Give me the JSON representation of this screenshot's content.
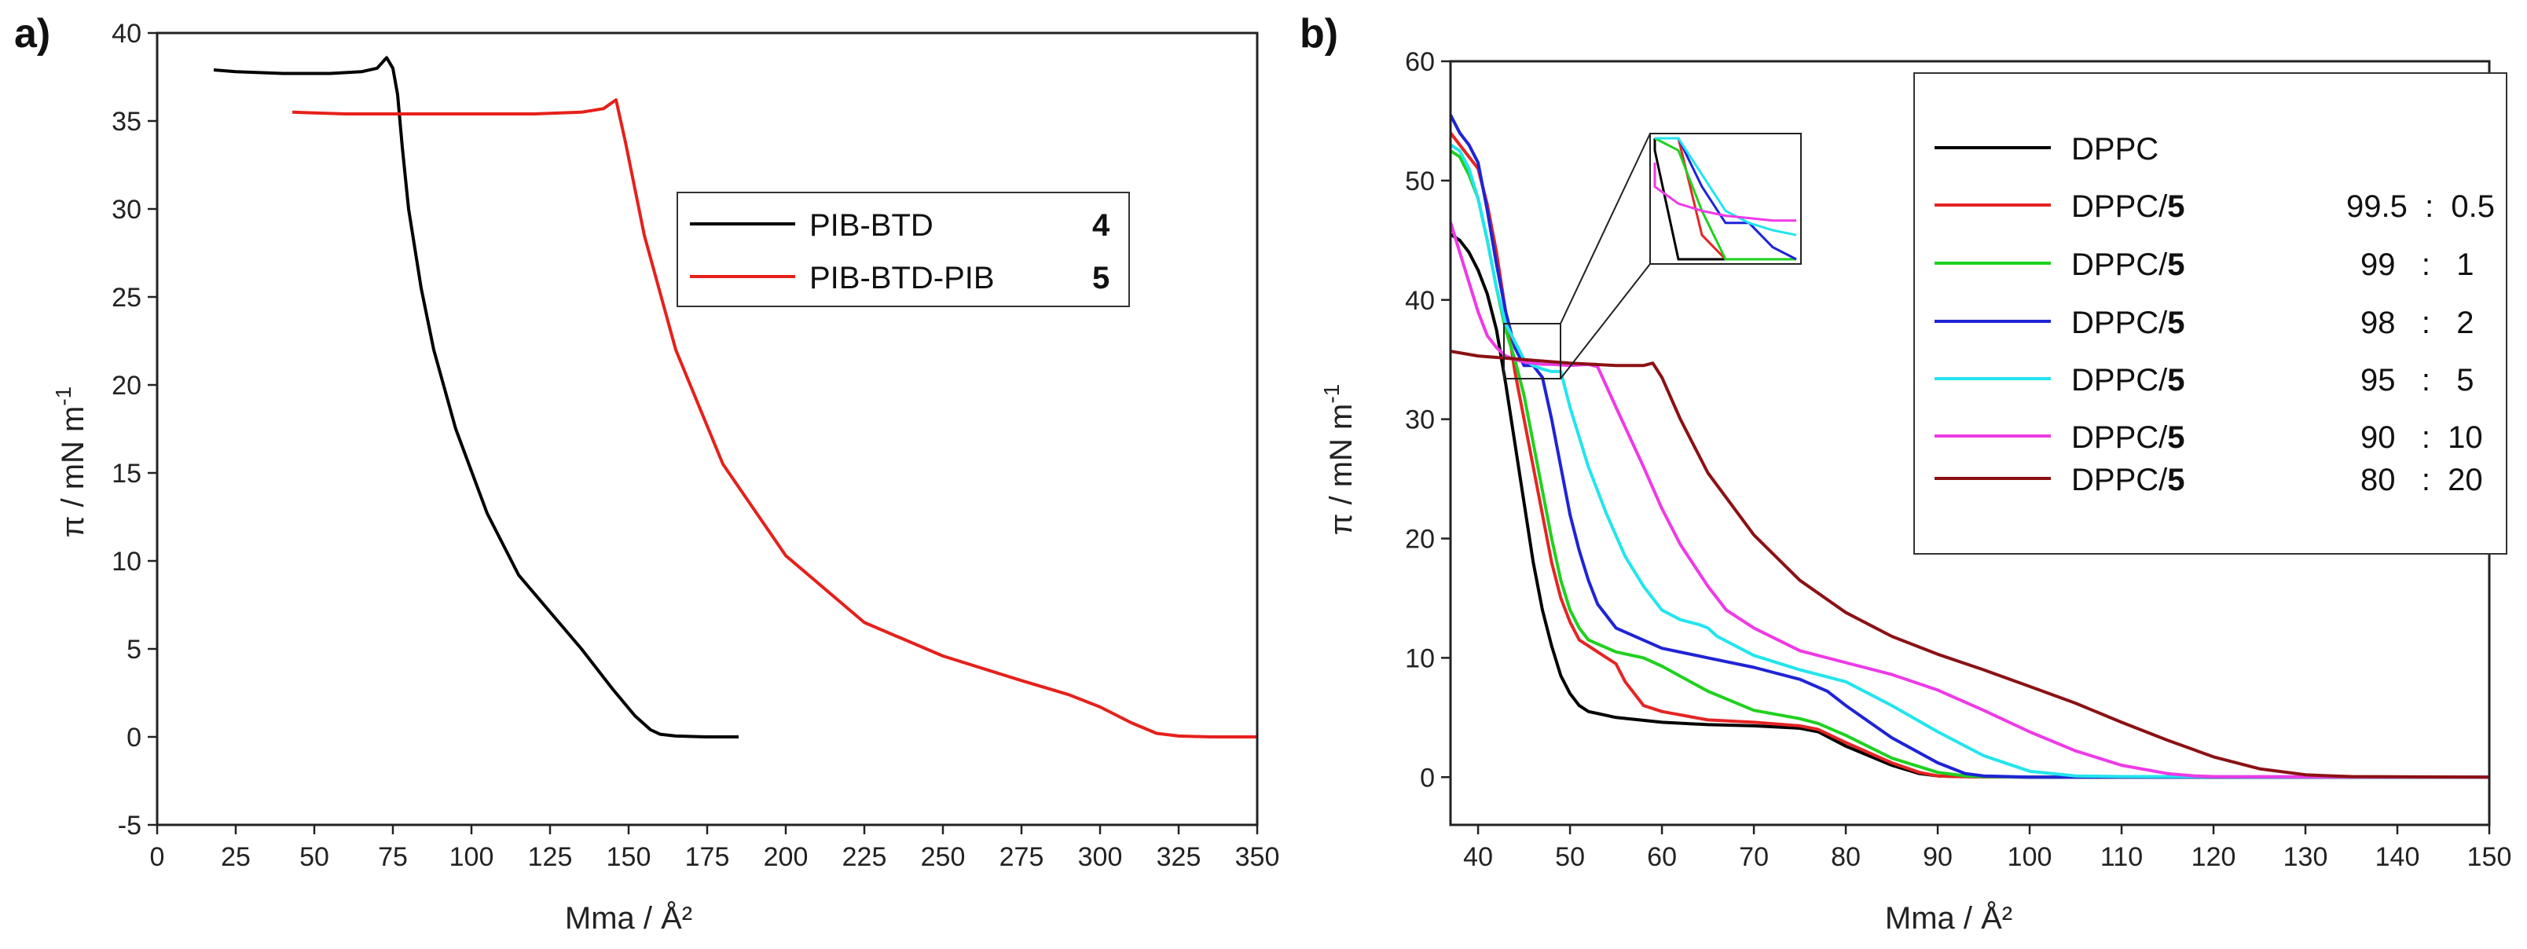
{
  "chart_data": [
    {
      "type": "line",
      "panel": "a)",
      "xlabel": "Mma / Å²",
      "ylabel_main": "π / mN m",
      "ylabel_sup": "-1",
      "xlim": [
        0,
        350
      ],
      "ylim": [
        -5,
        40
      ],
      "xticks": [
        0,
        25,
        50,
        75,
        100,
        125,
        150,
        175,
        200,
        225,
        250,
        275,
        300,
        325,
        350
      ],
      "yticks": [
        -5,
        0,
        5,
        10,
        15,
        20,
        25,
        30,
        35,
        40
      ],
      "legend_position": "upper-right",
      "series": [
        {
          "name": "PIB-BTD",
          "compound": "4",
          "ratio": "",
          "color": "#000000",
          "x": [
            18,
            25,
            40,
            55,
            65,
            70,
            73,
            75,
            76.5,
            78,
            80,
            84,
            88,
            95,
            105,
            115,
            125,
            135,
            145,
            152,
            157,
            160,
            165,
            175,
            185
          ],
          "y": [
            37.9,
            37.8,
            37.7,
            37.7,
            37.8,
            38.0,
            38.6,
            38.0,
            36.5,
            33.5,
            30.0,
            25.5,
            22.0,
            17.5,
            12.7,
            9.2,
            7.1,
            5.0,
            2.7,
            1.2,
            0.4,
            0.15,
            0.05,
            0.0,
            0.0
          ]
        },
        {
          "name": "PIB-BTD-PIB",
          "compound": "5",
          "ratio": "",
          "color": "#e6201b",
          "x": [
            43,
            60,
            80,
            100,
            120,
            135,
            142,
            146,
            149,
            155,
            165,
            180,
            200,
            225,
            250,
            275,
            290,
            300,
            310,
            318,
            325,
            335,
            350
          ],
          "y": [
            35.5,
            35.4,
            35.4,
            35.4,
            35.4,
            35.5,
            35.7,
            36.2,
            33.8,
            28.5,
            22.0,
            15.5,
            10.3,
            6.5,
            4.6,
            3.2,
            2.4,
            1.7,
            0.8,
            0.2,
            0.05,
            0.0,
            0.0
          ]
        }
      ]
    },
    {
      "type": "line",
      "panel": "b)",
      "xlabel": "Mma / Å²",
      "ylabel_main": "π / mN m",
      "ylabel_sup": "-1",
      "xlim": [
        37,
        150
      ],
      "ylim": [
        -4,
        60
      ],
      "xticks": [
        40,
        50,
        60,
        70,
        80,
        90,
        100,
        110,
        120,
        130,
        140,
        150
      ],
      "yticks": [
        0,
        10,
        20,
        30,
        40,
        50,
        60
      ],
      "legend_position": "upper-right",
      "inset": "zoom box around Mma 42-48, π 33-38",
      "series": [
        {
          "name": "DPPC",
          "compound": "",
          "ratio": "",
          "color": "#000000",
          "x": [
            37,
            38,
            39,
            40,
            41,
            42,
            43,
            44,
            45,
            46,
            47,
            48,
            49,
            50,
            51,
            52,
            55,
            60,
            65,
            70,
            75,
            77,
            80,
            85,
            88,
            90,
            92,
            100,
            110,
            120,
            130,
            150
          ],
          "y": [
            45.5,
            45,
            44,
            42.5,
            40.5,
            37.5,
            33,
            28,
            23,
            18,
            14,
            11,
            8.5,
            7,
            6,
            5.5,
            5,
            4.6,
            4.4,
            4.3,
            4.1,
            3.8,
            2.6,
            1.0,
            0.3,
            0.1,
            0.05,
            0,
            0,
            0,
            0,
            0
          ]
        },
        {
          "name": "DPPC/",
          "compound": "5",
          "ratio": "99.5  :  0.5",
          "color": "#e62424",
          "x": [
            37,
            38,
            39,
            40,
            41,
            42,
            43,
            44,
            45,
            46,
            47,
            48,
            49,
            50,
            51,
            52,
            53,
            54,
            55,
            56,
            58,
            60,
            65,
            70,
            75,
            77,
            80,
            85,
            88,
            90,
            92,
            100,
            150
          ],
          "y": [
            54,
            53,
            52,
            51,
            48,
            44,
            39,
            34,
            30,
            26,
            22,
            18,
            15,
            13,
            11.5,
            11,
            10.5,
            10,
            9.5,
            8,
            6,
            5.5,
            4.8,
            4.6,
            4.3,
            4.0,
            2.9,
            1.2,
            0.4,
            0.1,
            0.05,
            0,
            0
          ]
        },
        {
          "name": "DPPC/",
          "compound": "5",
          "ratio": "99   :   1",
          "color": "#1fd11f",
          "x": [
            37,
            38,
            39,
            40,
            41,
            42,
            43,
            44,
            45,
            46,
            47,
            48,
            49,
            50,
            51,
            52,
            55,
            58,
            60,
            65,
            70,
            75,
            77,
            80,
            85,
            90,
            93,
            95,
            100,
            150
          ],
          "y": [
            52.5,
            52,
            50.5,
            48.5,
            45,
            41,
            37.5,
            35,
            32,
            28,
            24,
            20,
            16.5,
            14,
            12.5,
            11.5,
            10.5,
            10,
            9.3,
            7.2,
            5.6,
            4.9,
            4.5,
            3.5,
            1.6,
            0.4,
            0.1,
            0.05,
            0,
            0
          ]
        },
        {
          "name": "DPPC/",
          "compound": "5",
          "ratio": "98   :   2",
          "color": "#1f24d6",
          "x": [
            37,
            38,
            39,
            40,
            41,
            42,
            43,
            44,
            45,
            46,
            47,
            48,
            49,
            50,
            51,
            52,
            53,
            55,
            60,
            65,
            70,
            75,
            78,
            80,
            85,
            90,
            93,
            95,
            100,
            150
          ],
          "y": [
            55.5,
            54,
            53,
            51.5,
            47.5,
            43,
            39,
            36,
            34.5,
            34.5,
            33.5,
            30,
            26,
            22,
            19,
            16.5,
            14.5,
            12.5,
            10.8,
            10,
            9.2,
            8.2,
            7.2,
            6,
            3.3,
            1.2,
            0.3,
            0.1,
            0,
            0
          ]
        },
        {
          "name": "DPPC/",
          "compound": "5",
          "ratio": "95   :   5",
          "color": "#22e5ee",
          "x": [
            37,
            38,
            39,
            40,
            41,
            42,
            43,
            44,
            45,
            46,
            47,
            48,
            49,
            50,
            52,
            54,
            56,
            58,
            60,
            62,
            64,
            65,
            66,
            70,
            75,
            80,
            85,
            90,
            95,
            100,
            105,
            110,
            150
          ],
          "y": [
            53,
            52.5,
            51,
            48.5,
            45,
            41,
            38,
            36.5,
            35,
            34.5,
            34.2,
            34,
            34,
            31,
            26,
            22,
            18.5,
            16,
            14,
            13.2,
            12.8,
            12.5,
            11.8,
            10.2,
            9.0,
            8.0,
            6.0,
            3.8,
            1.8,
            0.5,
            0.1,
            0.05,
            0
          ]
        },
        {
          "name": "DPPC/",
          "compound": "5",
          "ratio": "90   :  10",
          "color": "#ee3ae6",
          "x": [
            37,
            38,
            39,
            40,
            41,
            42,
            43,
            44,
            45,
            46,
            47,
            48,
            50,
            52,
            53,
            55,
            58,
            60,
            62,
            65,
            67,
            70,
            75,
            80,
            85,
            90,
            95,
            100,
            105,
            110,
            115,
            118,
            120,
            150
          ],
          "y": [
            46.5,
            44,
            41.5,
            39,
            37,
            36,
            35.3,
            35,
            34.8,
            34.7,
            34.6,
            34.6,
            34.5,
            34.6,
            34.4,
            31,
            26,
            22.5,
            19.5,
            16,
            14,
            12.5,
            10.6,
            9.6,
            8.6,
            7.3,
            5.6,
            3.8,
            2.2,
            1.0,
            0.3,
            0.1,
            0.05,
            0
          ]
        },
        {
          "name": "DPPC/",
          "compound": "5",
          "ratio": "80   :  20",
          "color": "#8c1114",
          "x": [
            37,
            40,
            45,
            50,
            55,
            58,
            59,
            60,
            62,
            65,
            70,
            75,
            80,
            85,
            90,
            95,
            100,
            105,
            110,
            115,
            120,
            125,
            130,
            133,
            135,
            150
          ],
          "y": [
            35.7,
            35.3,
            35,
            34.7,
            34.5,
            34.5,
            34.7,
            33.5,
            30,
            25.5,
            20.3,
            16.5,
            13.8,
            11.8,
            10.3,
            9.0,
            7.6,
            6.2,
            4.6,
            3.1,
            1.7,
            0.7,
            0.2,
            0.1,
            0.05,
            0
          ]
        }
      ]
    }
  ]
}
